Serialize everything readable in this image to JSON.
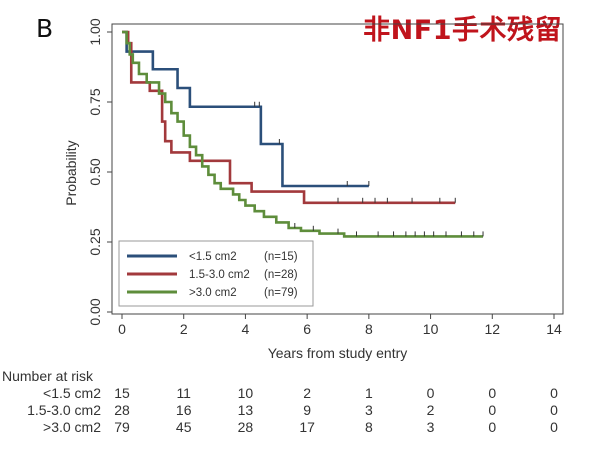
{
  "panel_label": "B",
  "header_title": "非NF1手术残留",
  "chart_data": {
    "type": "line",
    "title": "",
    "xlabel": "Years from study entry",
    "ylabel": "Probability",
    "xlim": [
      0,
      14
    ],
    "ylim": [
      0,
      1
    ],
    "x_ticks": [
      "0",
      "2",
      "4",
      "6",
      "8",
      "10",
      "12",
      "14"
    ],
    "y_ticks": [
      "0.00",
      "0.25",
      "0.50",
      "0.75",
      "1.00"
    ],
    "grid": false,
    "legend_placement": "bottom-left",
    "series": [
      {
        "name": "<1.5 cm2",
        "n_label": "(n=15)",
        "color": "#2b4f7a",
        "steps": [
          [
            0,
            1.0
          ],
          [
            0.15,
            0.93
          ],
          [
            1.0,
            0.867
          ],
          [
            1.8,
            0.8
          ],
          [
            2.2,
            0.733
          ],
          [
            4.5,
            0.6
          ],
          [
            5.2,
            0.45
          ],
          [
            8.0,
            0.45
          ]
        ],
        "censor_x": [
          4.3,
          4.45,
          5.1,
          7.3,
          8.0
        ]
      },
      {
        "name": "1.5-3.0 cm2",
        "n_label": "(n=28)",
        "color": "#a2393c",
        "steps": [
          [
            0,
            1.0
          ],
          [
            0.2,
            0.96
          ],
          [
            0.3,
            0.82
          ],
          [
            0.9,
            0.79
          ],
          [
            1.3,
            0.68
          ],
          [
            1.4,
            0.61
          ],
          [
            1.6,
            0.57
          ],
          [
            2.2,
            0.54
          ],
          [
            3.5,
            0.46
          ],
          [
            4.2,
            0.43
          ],
          [
            5.9,
            0.39
          ],
          [
            10.8,
            0.39
          ]
        ],
        "censor_x": [
          7.0,
          7.8,
          8.2,
          8.6,
          9.4,
          10.3,
          10.8
        ]
      },
      {
        "name": ">3.0 cm2",
        "n_label": "(n=79)",
        "color": "#5e8d3b",
        "steps": [
          [
            0,
            1.0
          ],
          [
            0.15,
            0.96
          ],
          [
            0.25,
            0.92
          ],
          [
            0.35,
            0.89
          ],
          [
            0.55,
            0.85
          ],
          [
            0.8,
            0.82
          ],
          [
            1.2,
            0.78
          ],
          [
            1.4,
            0.75
          ],
          [
            1.6,
            0.71
          ],
          [
            1.8,
            0.68
          ],
          [
            2.0,
            0.63
          ],
          [
            2.2,
            0.59
          ],
          [
            2.4,
            0.56
          ],
          [
            2.6,
            0.52
          ],
          [
            2.8,
            0.49
          ],
          [
            3.0,
            0.46
          ],
          [
            3.2,
            0.44
          ],
          [
            3.6,
            0.42
          ],
          [
            3.8,
            0.4
          ],
          [
            4.0,
            0.38
          ],
          [
            4.3,
            0.36
          ],
          [
            4.6,
            0.34
          ],
          [
            5.0,
            0.32
          ],
          [
            5.4,
            0.3
          ],
          [
            5.8,
            0.29
          ],
          [
            6.4,
            0.28
          ],
          [
            7.2,
            0.27
          ],
          [
            11.7,
            0.27
          ]
        ],
        "censor_x": [
          5.6,
          6.2,
          7.0,
          7.6,
          8.3,
          8.8,
          9.2,
          9.5,
          9.8,
          10.1,
          10.5,
          11.0,
          11.4,
          11.7
        ]
      }
    ],
    "risk_table": {
      "title": "Number at risk",
      "rows": [
        {
          "label": "<1.5 cm2",
          "counts": [
            "15",
            "11",
            "10",
            "2",
            "1",
            "0",
            "0",
            "0"
          ]
        },
        {
          "label": "1.5-3.0 cm2",
          "counts": [
            "28",
            "16",
            "13",
            "9",
            "3",
            "2",
            "0",
            "0"
          ]
        },
        {
          "label": ">3.0 cm2",
          "counts": [
            "79",
            "45",
            "28",
            "17",
            "8",
            "3",
            "0",
            "0"
          ]
        }
      ]
    }
  }
}
